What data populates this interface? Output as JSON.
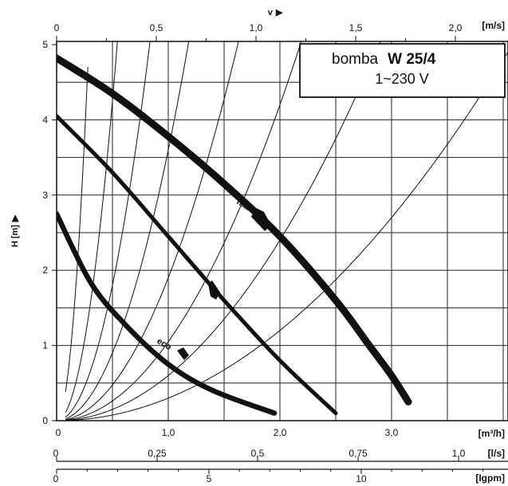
{
  "chart_data": {
    "type": "line",
    "title": {
      "prefix": "bomba",
      "model": "W 25/4",
      "supply": "1~230 V"
    },
    "xlabel": "",
    "ylabel": "H [m]",
    "xlim": [
      0,
      3.6
    ],
    "ylim": [
      0,
      5
    ],
    "grid": true,
    "y_ticks": [
      "0",
      "1",
      "2",
      "3",
      "4",
      "5"
    ],
    "x_ticks": [
      "0",
      "1,0",
      "2,0",
      "3,0"
    ],
    "x_unit": "[m³/h]",
    "velocity_axis": {
      "label": "v",
      "unit": "[m/s]",
      "ticks": [
        "0",
        "0,5",
        "1,0",
        "1,5",
        "2,0"
      ]
    },
    "ls_axis": {
      "unit": "[l/s]",
      "ticks": [
        "0",
        "0,25",
        "0,5",
        "0,75",
        "1,0"
      ]
    },
    "igpm_axis": {
      "unit": "[Igpm]",
      "ticks": [
        "0",
        "5",
        "10"
      ]
    },
    "series": [
      {
        "name": "max",
        "x": [
          0.0,
          0.5,
          1.0,
          1.5,
          2.0,
          2.5,
          2.8,
          3.0,
          3.15
        ],
        "y": [
          4.82,
          4.35,
          3.78,
          3.15,
          2.45,
          1.6,
          1.0,
          0.6,
          0.25
        ]
      },
      {
        "name": "",
        "x": [
          0.0,
          0.5,
          1.0,
          1.5,
          2.0,
          2.5
        ],
        "y": [
          4.05,
          3.3,
          2.45,
          1.6,
          0.8,
          0.1
        ]
      },
      {
        "name": "eco",
        "x": [
          0.0,
          0.3,
          0.6,
          1.0,
          1.4,
          1.95
        ],
        "y": [
          2.75,
          1.85,
          1.3,
          0.75,
          0.4,
          0.1
        ]
      }
    ],
    "system_curves": [
      {
        "k": 60.0
      },
      {
        "k": 17.0
      },
      {
        "k": 7.2
      },
      {
        "k": 3.6
      },
      {
        "k": 1.9
      },
      {
        "k": 1.05
      },
      {
        "k": 0.6
      },
      {
        "k": 0.3
      }
    ]
  }
}
